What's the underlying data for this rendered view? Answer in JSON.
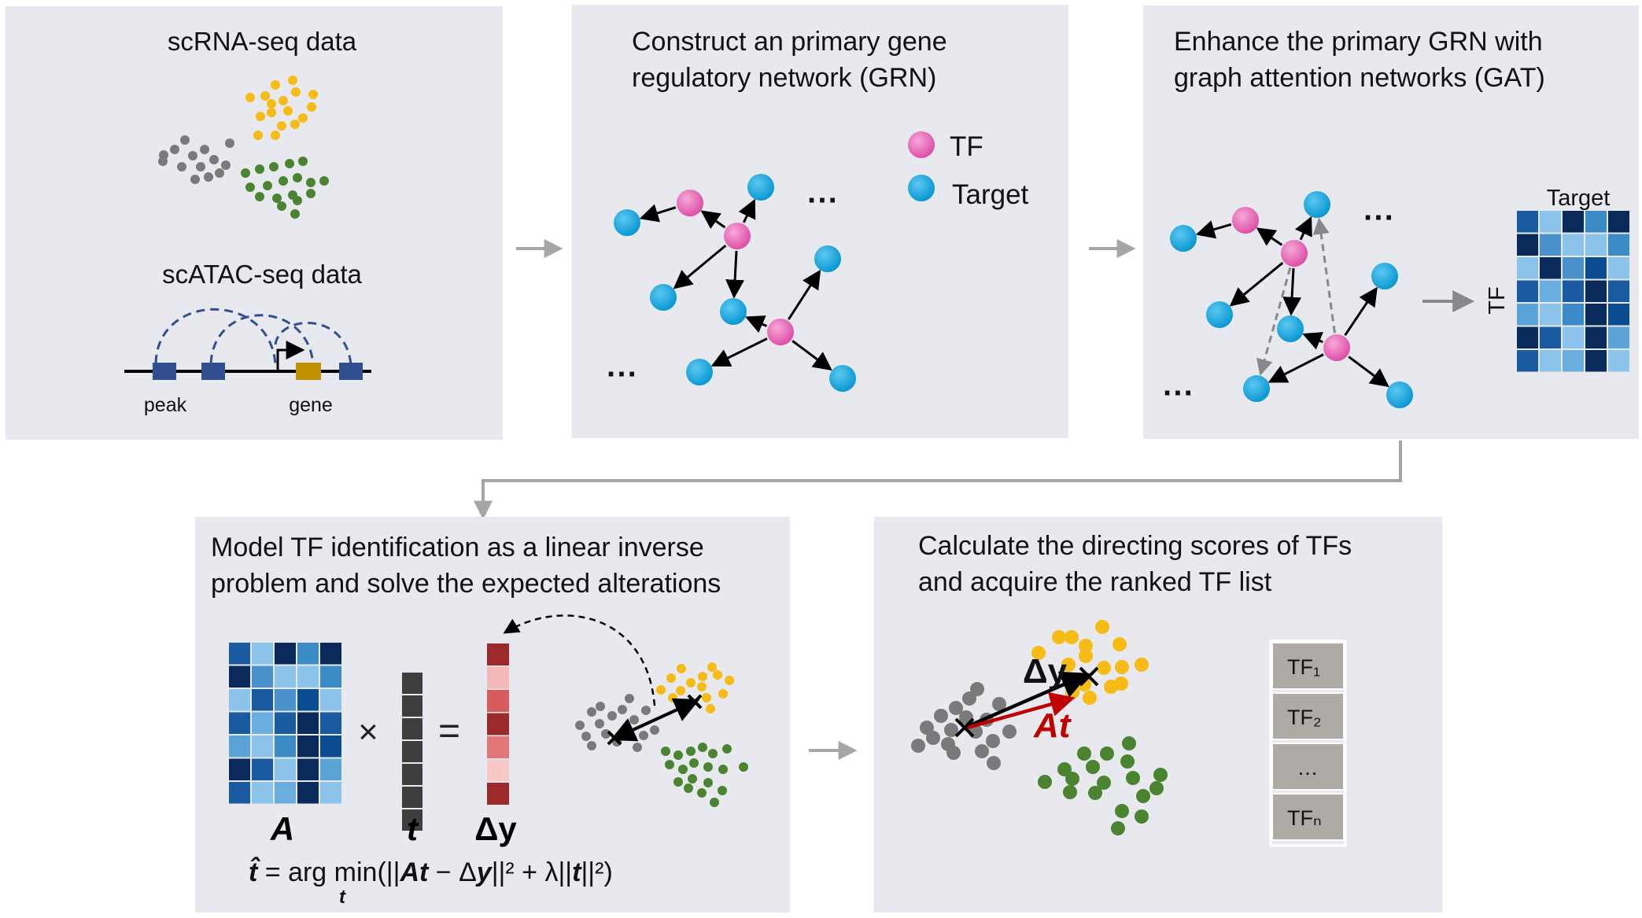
{
  "colors": {
    "panel_bg": "#e7e9ee",
    "tf_node": "#e963b6",
    "target_node": "#12a6df",
    "gray_cluster": "#7a7a7a",
    "yellow_cluster": "#f6bb14",
    "green_cluster": "#4a8430",
    "connector": "#a6a6a6",
    "peak_block": "#2f4f8f",
    "gene_block": "#bf9000",
    "arc": "#2f4f8f",
    "dark_red": "#9d2a2a",
    "rank_cell": "#aeaaa6"
  },
  "panel1": {
    "rna_title": "scRNA-seq data",
    "atac_title": "scATAC-seq data",
    "peak_label": "peak",
    "gene_label": "gene"
  },
  "panel2": {
    "title_line1": "Construct an primary gene",
    "title_line2": "regulatory network (GRN)",
    "legend_tf": "TF",
    "legend_target": "Target",
    "ellipsis": "···"
  },
  "panel3": {
    "title_line1": "Enhance the primary GRN with",
    "title_line2": "graph attention networks (GAT)",
    "matrix_col_label": "Target",
    "matrix_row_label": "TF",
    "ellipsis": "···"
  },
  "panel4": {
    "title_line1": "Model TF identification as a linear inverse",
    "title_line2": "problem and solve the expected alterations",
    "label_A": "A",
    "label_t": "t",
    "label_dy": "Δy",
    "times": "×",
    "equals": "=",
    "formula": {
      "lhs": "t̂",
      "eq": " = arg min(||",
      "At": "At",
      "mid": " − Δ",
      "y": "y",
      "reg": "||² + λ||",
      "t": "t",
      "end": "||²)",
      "sub": "t"
    }
  },
  "panel5": {
    "title_line1": "Calculate the directing scores of TFs",
    "title_line2": "and acquire the ranked TF list",
    "dy_label": "Δy",
    "at_label": "At",
    "ranked_list": [
      "TF₁",
      "TF₂",
      "…",
      "TFₙ"
    ]
  }
}
